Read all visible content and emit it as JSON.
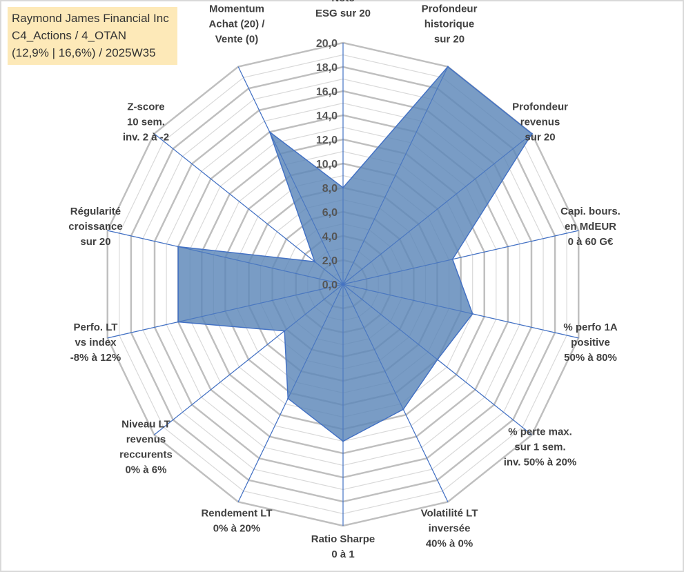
{
  "title": {
    "line1": "Raymond James Financial Inc",
    "line2": "C4_Actions / 4_OTAN",
    "line3": "(12,9% | 16,6%) / 2025W35"
  },
  "colors": {
    "fill": "#5b86b8",
    "stroke": "#4472c4",
    "grid": "#bfbfbf",
    "title_bg": "#fde9b8"
  },
  "chart_data": {
    "type": "radar",
    "title": "Raymond James Financial Inc",
    "rlim": [
      0,
      20
    ],
    "tick_labels": [
      "0,0",
      "2,0",
      "4,0",
      "6,0",
      "8,0",
      "10,0",
      "12,0",
      "14,0",
      "16,0",
      "18,0",
      "20,0"
    ],
    "categories": [
      [
        "Note",
        "ESG sur 20"
      ],
      [
        "Profondeur",
        "historique",
        "sur 20"
      ],
      [
        "Profondeur",
        "revenus",
        "sur 20"
      ],
      [
        "Capi. bours.",
        "en MdEUR",
        "0 à 60 G€"
      ],
      [
        "% perfo 1A",
        "positive",
        "50% à 80%"
      ],
      [
        "% perte max.",
        "sur 1 sem.",
        "inv. 50% à 20%"
      ],
      [
        "Volatilité LT",
        "inversée",
        "40% à 0%"
      ],
      [
        "Ratio Sharpe",
        "0 à 1"
      ],
      [
        "Rendement LT",
        "0% à 20%"
      ],
      [
        "Niveau LT",
        "revenus",
        "reccurents",
        "0% à 6%"
      ],
      [
        "Perfo. LT",
        "vs index",
        "-8% à 12%"
      ],
      [
        "Régularité",
        "croissance",
        "sur 20"
      ],
      [
        "Z-score",
        "10 sem.",
        "inv. 2 à -2"
      ],
      [
        "Momentum",
        "Achat (20) /",
        "Vente (0)"
      ]
    ],
    "values": [
      8.0,
      20.0,
      20.0,
      9.3,
      11.0,
      10.0,
      11.5,
      13.0,
      10.5,
      6.2,
      14.0,
      14.0,
      3.0,
      14.0
    ],
    "grid": true,
    "legend": "none"
  }
}
